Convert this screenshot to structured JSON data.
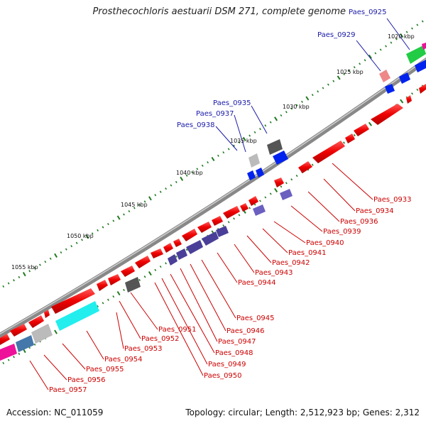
{
  "title": "Prosthecochloris aestuarii DSM 271, complete genome",
  "footer": {
    "accession": "Accession: NC_011059",
    "stats": "Topology: circular; Length: 2,512,923 bp; Genes: 2,312"
  },
  "colors": {
    "backbone": "#8c8c8c",
    "forward_label": "#cc0000",
    "reverse_label": "#1a1aa8",
    "tick": "#1f7a1f",
    "cds": "#ee0000",
    "rrna": "#22cc44",
    "trna": "#0033ee",
    "other": "#666666",
    "purple": "#5a4fa8",
    "cyan": "#22eeee",
    "magenta": "#ee1199",
    "steelblue": "#4477aa",
    "silver": "#bbbbbb"
  },
  "scale_labels": [
    "1020 kbp",
    "1025 kbp",
    "1030 kbp",
    "1035 kbp",
    "1040 kbp",
    "1045 kbp",
    "1050 kbp",
    "1055 kbp"
  ],
  "genes_top": [
    "Paes_0925",
    "Paes_0929",
    "Paes_0935",
    "Paes_0937",
    "Paes_0938"
  ],
  "genes_bottom": [
    "Paes_0933",
    "Paes_0934",
    "Paes_0936",
    "Paes_0939",
    "Paes_0940",
    "Paes_0941",
    "Paes_0942",
    "Paes_0943",
    "Paes_0944",
    "Paes_0945",
    "Paes_0946",
    "Paes_0947",
    "Paes_0948",
    "Paes_0949",
    "Paes_0950",
    "Paes_0951",
    "Paes_0952",
    "Paes_0953",
    "Paes_0954",
    "Paes_0955",
    "Paes_0956",
    "Paes_0957"
  ]
}
